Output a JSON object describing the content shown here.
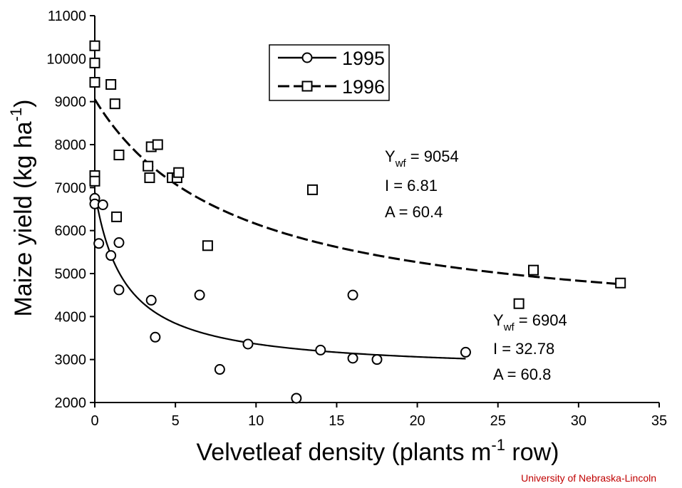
{
  "chart_data": {
    "type": "scatter",
    "xlabel": "Velvetleaf density (plants m",
    "xlabel_sup": "-1",
    "xlabel_tail": " row)",
    "ylabel": "Maize yield (kg ha",
    "ylabel_sup": "-1",
    "ylabel_tail": ")",
    "xlim": [
      0,
      35
    ],
    "ylim": [
      2000,
      11000
    ],
    "xticks": [
      "0",
      "5",
      "10",
      "15",
      "20",
      "25",
      "30",
      "35"
    ],
    "yticks": [
      "2000",
      "3000",
      "4000",
      "5000",
      "6000",
      "7000",
      "8000",
      "9000",
      "10000",
      "11000"
    ],
    "grid": false,
    "legend_position": "top-center",
    "series": [
      {
        "name": "1995",
        "marker": "circle",
        "line_style": "solid",
        "points": [
          {
            "x": 0.0,
            "y": 6750
          },
          {
            "x": 0.0,
            "y": 6620
          },
          {
            "x": 0.25,
            "y": 5700
          },
          {
            "x": 0.5,
            "y": 6600
          },
          {
            "x": 1.0,
            "y": 5420
          },
          {
            "x": 1.5,
            "y": 5720
          },
          {
            "x": 1.5,
            "y": 4620
          },
          {
            "x": 3.5,
            "y": 4380
          },
          {
            "x": 3.75,
            "y": 3520
          },
          {
            "x": 6.5,
            "y": 4500
          },
          {
            "x": 7.75,
            "y": 2770
          },
          {
            "x": 9.5,
            "y": 3360
          },
          {
            "x": 12.5,
            "y": 2100
          },
          {
            "x": 14.0,
            "y": 3220
          },
          {
            "x": 16.0,
            "y": 4500
          },
          {
            "x": 16.0,
            "y": 3030
          },
          {
            "x": 17.5,
            "y": 3000
          },
          {
            "x": 23.0,
            "y": 3170
          }
        ],
        "fit": {
          "Ywf": 6904,
          "I": 32.78,
          "A": 60.8,
          "x_range": [
            0,
            23
          ]
        }
      },
      {
        "name": "1996",
        "marker": "square",
        "line_style": "dashed",
        "points": [
          {
            "x": 0.0,
            "y": 10300
          },
          {
            "x": 0.0,
            "y": 9900
          },
          {
            "x": 0.0,
            "y": 9450
          },
          {
            "x": 0.0,
            "y": 7280
          },
          {
            "x": 0.0,
            "y": 7150
          },
          {
            "x": 1.0,
            "y": 9400
          },
          {
            "x": 1.25,
            "y": 8950
          },
          {
            "x": 1.5,
            "y": 7760
          },
          {
            "x": 1.35,
            "y": 6320
          },
          {
            "x": 3.3,
            "y": 7500
          },
          {
            "x": 3.5,
            "y": 7950
          },
          {
            "x": 3.4,
            "y": 7230
          },
          {
            "x": 3.9,
            "y": 8000
          },
          {
            "x": 4.8,
            "y": 7230
          },
          {
            "x": 5.1,
            "y": 7230
          },
          {
            "x": 5.2,
            "y": 7350
          },
          {
            "x": 7.0,
            "y": 5650
          },
          {
            "x": 13.5,
            "y": 6950
          },
          {
            "x": 26.3,
            "y": 4300
          },
          {
            "x": 27.2,
            "y": 5080
          },
          {
            "x": 32.6,
            "y": 4780
          }
        ],
        "fit": {
          "Ywf": 9054,
          "I": 6.81,
          "A": 60.4,
          "x_range": [
            0,
            32.6
          ]
        }
      }
    ],
    "annotations": {
      "1996": {
        "ywf_label": "Y",
        "ywf_sub": "wf",
        "ywf_value": " = 9054",
        "i_text": "I = 6.81",
        "a_text": "A = 60.4"
      },
      "1995": {
        "ywf_label": "Y",
        "ywf_sub": "wf",
        "ywf_value": " = 6904",
        "i_text": "I = 32.78",
        "a_text": "A = 60.8"
      }
    }
  },
  "credit": "University of Nebraska-Lincoln",
  "colors": {
    "ink": "#000000",
    "credit": "#c00000",
    "background": "#ffffff"
  }
}
